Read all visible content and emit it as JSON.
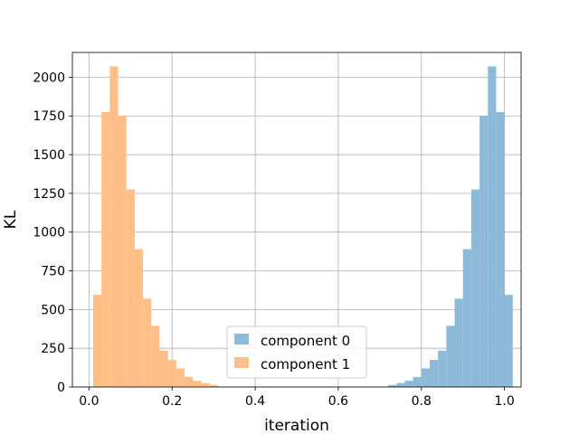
{
  "chart_data": {
    "type": "histogram",
    "title": "",
    "xlabel": "iteration",
    "ylabel": "KL",
    "xlim": [
      -0.04,
      1.04
    ],
    "ylim": [
      0,
      2160
    ],
    "grid": true,
    "legend": {
      "placement": "lower-center"
    },
    "xticks": [
      0.0,
      0.2,
      0.4,
      0.6,
      0.8,
      1.0
    ],
    "xtick_labels": [
      "0.0",
      "0.2",
      "0.4",
      "0.6",
      "0.8",
      "1.0"
    ],
    "yticks": [
      0,
      250,
      500,
      750,
      1000,
      1250,
      1500,
      1750,
      2000
    ],
    "ytick_labels": [
      "0",
      "250",
      "500",
      "750",
      "1000",
      "1250",
      "1500",
      "1750",
      "2000"
    ],
    "series": [
      {
        "name": "component 0",
        "color": "#8ebad9",
        "bins": [
          {
            "x0": 0.7,
            "x1": 0.72,
            "count": 3
          },
          {
            "x0": 0.72,
            "x1": 0.74,
            "count": 13
          },
          {
            "x0": 0.74,
            "x1": 0.76,
            "count": 25
          },
          {
            "x0": 0.76,
            "x1": 0.78,
            "count": 40
          },
          {
            "x0": 0.78,
            "x1": 0.8,
            "count": 65
          },
          {
            "x0": 0.8,
            "x1": 0.82,
            "count": 120
          },
          {
            "x0": 0.82,
            "x1": 0.84,
            "count": 175
          },
          {
            "x0": 0.84,
            "x1": 0.86,
            "count": 235
          },
          {
            "x0": 0.86,
            "x1": 0.88,
            "count": 395
          },
          {
            "x0": 0.88,
            "x1": 0.9,
            "count": 570
          },
          {
            "x0": 0.9,
            "x1": 0.92,
            "count": 890
          },
          {
            "x0": 0.92,
            "x1": 0.94,
            "count": 1275
          },
          {
            "x0": 0.94,
            "x1": 0.96,
            "count": 1750
          },
          {
            "x0": 0.96,
            "x1": 0.98,
            "count": 2070
          },
          {
            "x0": 0.98,
            "x1": 1.0,
            "count": 1775
          },
          {
            "x0": 1.0,
            "x1": 1.02,
            "count": 595
          }
        ]
      },
      {
        "name": "component 1",
        "color": "#ffbf86",
        "bins": [
          {
            "x0": 0.01,
            "x1": 0.03,
            "count": 595
          },
          {
            "x0": 0.03,
            "x1": 0.05,
            "count": 1775
          },
          {
            "x0": 0.05,
            "x1": 0.07,
            "count": 2070
          },
          {
            "x0": 0.07,
            "x1": 0.09,
            "count": 1750
          },
          {
            "x0": 0.09,
            "x1": 0.11,
            "count": 1275
          },
          {
            "x0": 0.11,
            "x1": 0.13,
            "count": 890
          },
          {
            "x0": 0.13,
            "x1": 0.15,
            "count": 570
          },
          {
            "x0": 0.15,
            "x1": 0.17,
            "count": 395
          },
          {
            "x0": 0.17,
            "x1": 0.19,
            "count": 235
          },
          {
            "x0": 0.19,
            "x1": 0.21,
            "count": 175
          },
          {
            "x0": 0.21,
            "x1": 0.23,
            "count": 120
          },
          {
            "x0": 0.23,
            "x1": 0.25,
            "count": 65
          },
          {
            "x0": 0.25,
            "x1": 0.27,
            "count": 40
          },
          {
            "x0": 0.27,
            "x1": 0.29,
            "count": 25
          },
          {
            "x0": 0.29,
            "x1": 0.31,
            "count": 13
          },
          {
            "x0": 0.31,
            "x1": 0.33,
            "count": 3
          }
        ]
      }
    ]
  }
}
